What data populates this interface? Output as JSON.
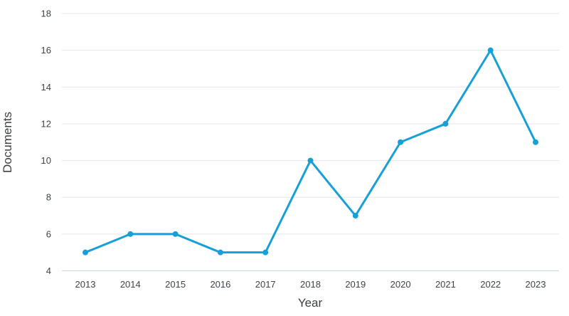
{
  "chart_data": {
    "type": "line",
    "title": "",
    "xlabel": "Year",
    "ylabel": "Documents",
    "x": [
      2013,
      2014,
      2015,
      2016,
      2017,
      2018,
      2019,
      2020,
      2021,
      2022,
      2023
    ],
    "series": [
      {
        "name": "Documents",
        "values": [
          5,
          6,
          6,
          5,
          5,
          10,
          7,
          11,
          12,
          16,
          11
        ]
      }
    ],
    "ylim": [
      4,
      18
    ],
    "yticks": [
      4,
      6,
      8,
      10,
      12,
      14,
      16,
      18
    ],
    "grid": true,
    "legend": "none",
    "marker": "circle",
    "colors": {
      "line": "#17a0d8",
      "marker": "#17a0d8",
      "gridline": "#e6e6e6",
      "axis_line": "#ccd6eb",
      "tick_label": "#3d4349",
      "axis_title": "#3c4043",
      "background": "#ffffff"
    }
  }
}
